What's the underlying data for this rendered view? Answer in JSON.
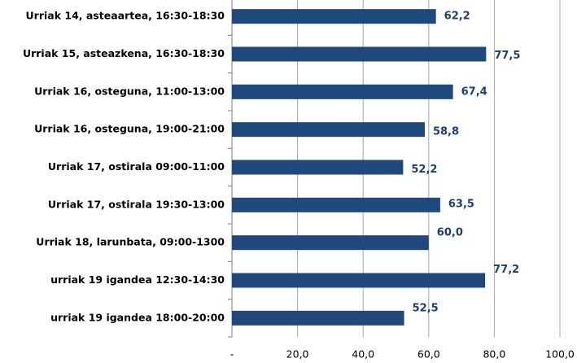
{
  "chart_data": {
    "type": "bar",
    "orientation": "horizontal",
    "categories": [
      "Urriak 14, asteaartea, 16:30-18:30",
      "Urriak 15, asteazkena, 16:30-18:30",
      "Urriak 16, osteguna, 11:00-13:00",
      "Urriak 16, osteguna, 19:00-21:00",
      "Urriak 17, ostirala 09:00-11:00",
      "Urriak 17, ostirala 19:30-13:00",
      "Urriak 18, larunbata, 09:00-1300",
      "urriak 19 igandea 12:30-14:30",
      "urriak 19 igandea 18:00-20:00"
    ],
    "values": [
      62.2,
      77.5,
      67.4,
      58.8,
      52.2,
      63.5,
      60.0,
      77.2,
      52.5
    ],
    "value_labels": [
      "62,2",
      "77,5",
      "67,4",
      "58,8",
      "52,2",
      "63,5",
      "60,0",
      "77,2",
      "52,5"
    ],
    "color": "#1f497d",
    "xlim": [
      0,
      100
    ],
    "xticks": [
      {
        "value": 0,
        "label": "-"
      },
      {
        "value": 20,
        "label": "20,0"
      },
      {
        "value": 40,
        "label": "40,0"
      },
      {
        "value": 60,
        "label": "60,0"
      },
      {
        "value": 80,
        "label": "80,0"
      },
      {
        "value": 100,
        "label": "100,0"
      }
    ],
    "grid": true
  }
}
